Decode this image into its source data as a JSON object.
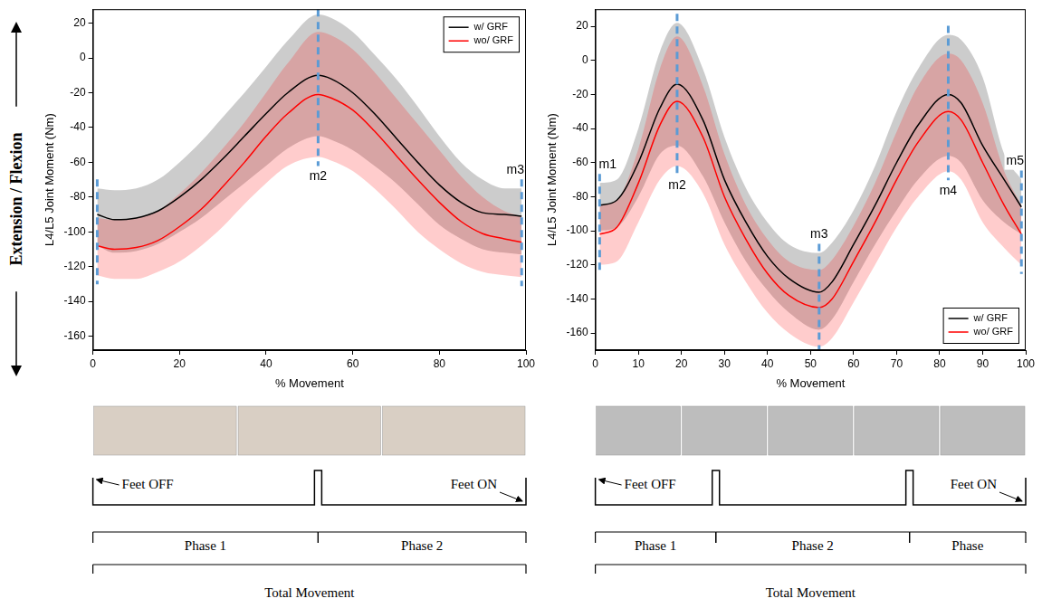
{
  "side_label": "Extension / Flexion",
  "chart_data": [
    {
      "type": "line",
      "x_label": "% Movement",
      "y_label": "L4/L5 Joint Moment (Nm)",
      "x": [
        1,
        5,
        10,
        15,
        20,
        25,
        30,
        35,
        40,
        45,
        52,
        55,
        60,
        65,
        70,
        75,
        80,
        85,
        90,
        95,
        99
      ],
      "series": [
        {
          "name": "w/ GRF",
          "color": "#000000",
          "values": [
            -90,
            -93,
            -92,
            -88,
            -80,
            -70,
            -58,
            -45,
            -32,
            -20,
            -10,
            -12,
            -20,
            -32,
            -46,
            -60,
            -73,
            -83,
            -89,
            -90,
            -91
          ],
          "upper": [
            -75,
            -76,
            -75,
            -70,
            -60,
            -48,
            -34,
            -20,
            -5,
            10,
            25,
            23,
            15,
            2,
            -12,
            -28,
            -45,
            -60,
            -70,
            -75,
            -75
          ],
          "lower": [
            -108,
            -112,
            -111,
            -107,
            -100,
            -92,
            -82,
            -72,
            -62,
            -52,
            -45,
            -47,
            -53,
            -62,
            -72,
            -84,
            -96,
            -104,
            -110,
            -112,
            -113
          ]
        },
        {
          "name": "wo/ GRF",
          "color": "#ff0000",
          "values": [
            -108,
            -110,
            -109,
            -105,
            -97,
            -87,
            -74,
            -60,
            -45,
            -32,
            -21,
            -23,
            -30,
            -42,
            -56,
            -70,
            -83,
            -94,
            -101,
            -104,
            -106
          ],
          "upper": [
            -92,
            -93,
            -92,
            -88,
            -78,
            -66,
            -52,
            -37,
            -20,
            -3,
            15,
            13,
            5,
            -8,
            -23,
            -38,
            -53,
            -68,
            -80,
            -88,
            -91
          ],
          "lower": [
            -125,
            -127,
            -127,
            -123,
            -117,
            -108,
            -97,
            -84,
            -72,
            -62,
            -57,
            -59,
            -65,
            -75,
            -87,
            -100,
            -110,
            -118,
            -123,
            -125,
            -126
          ]
        }
      ],
      "xlim": [
        0,
        100
      ],
      "xticks": [
        0,
        20,
        40,
        60,
        80,
        100
      ],
      "ylim": [
        -168,
        28
      ],
      "yticks": [
        -160,
        -140,
        -120,
        -100,
        -80,
        -60,
        -40,
        -20,
        0,
        20
      ],
      "grid": false,
      "legend": "upper right",
      "markers": [
        {
          "x": 1
        },
        {
          "x": 52,
          "label": "m2"
        },
        {
          "x": 99,
          "label": "m3"
        }
      ],
      "timeline": {
        "events": [
          {
            "label": "Feet OFF",
            "x": 0
          },
          {
            "label": "Feet ON",
            "x": 100
          }
        ],
        "pulses": [
          52
        ],
        "phases": [
          {
            "label": "Phase 1",
            "start": 0,
            "end": 52
          },
          {
            "label": "Phase 2",
            "start": 52,
            "end": 100
          }
        ],
        "total": {
          "label": "Total Movement",
          "start": 0,
          "end": 100
        }
      }
    },
    {
      "type": "line",
      "x_label": "% Movement",
      "y_label": "L4/L5 Joint Moment (Nm)",
      "x": [
        1,
        5,
        10,
        15,
        19,
        25,
        30,
        35,
        40,
        45,
        52,
        55,
        60,
        65,
        70,
        75,
        82,
        85,
        90,
        95,
        99
      ],
      "series": [
        {
          "name": "w/ GRF",
          "color": "#000000",
          "values": [
            -85,
            -82,
            -60,
            -28,
            -14,
            -35,
            -70,
            -95,
            -115,
            -128,
            -136,
            -130,
            -108,
            -85,
            -60,
            -38,
            -20,
            -25,
            -50,
            -70,
            -86
          ],
          "upper": [
            -72,
            -70,
            -40,
            5,
            22,
            -5,
            -45,
            -75,
            -95,
            -108,
            -113,
            -107,
            -88,
            -62,
            -30,
            -5,
            15,
            12,
            -10,
            -55,
            -70
          ],
          "lower": [
            -100,
            -98,
            -80,
            -55,
            -50,
            -68,
            -95,
            -118,
            -135,
            -148,
            -158,
            -152,
            -130,
            -108,
            -88,
            -70,
            -56,
            -60,
            -82,
            -95,
            -102
          ]
        },
        {
          "name": "wo/ GRF",
          "color": "#ff0000",
          "values": [
            -102,
            -98,
            -72,
            -38,
            -24,
            -45,
            -80,
            -105,
            -125,
            -138,
            -145,
            -140,
            -118,
            -95,
            -70,
            -48,
            -30,
            -35,
            -60,
            -85,
            -102
          ],
          "upper": [
            -85,
            -82,
            -52,
            -5,
            14,
            -15,
            -55,
            -85,
            -105,
            -118,
            -123,
            -117,
            -97,
            -72,
            -42,
            -15,
            4,
            0,
            -25,
            -65,
            -85
          ],
          "lower": [
            -120,
            -118,
            -95,
            -70,
            -62,
            -78,
            -108,
            -130,
            -148,
            -160,
            -168,
            -163,
            -142,
            -120,
            -98,
            -80,
            -65,
            -70,
            -95,
            -110,
            -120
          ]
        }
      ],
      "xlim": [
        0,
        100
      ],
      "xticks": [
        0,
        10,
        20,
        30,
        40,
        50,
        60,
        70,
        80,
        90,
        100
      ],
      "ylim": [
        -170,
        30
      ],
      "yticks": [
        -160,
        -140,
        -120,
        -100,
        -80,
        -60,
        -40,
        -20,
        0,
        20
      ],
      "grid": false,
      "legend": "lower right",
      "markers": [
        {
          "x": 1,
          "label": "m1"
        },
        {
          "x": 19,
          "label": "m2"
        },
        {
          "x": 52,
          "label": "m3"
        },
        {
          "x": 82,
          "label": "m4"
        },
        {
          "x": 99,
          "label": "m5"
        }
      ],
      "timeline": {
        "events": [
          {
            "label": "Feet OFF",
            "x": 0
          },
          {
            "label": "Feet ON",
            "x": 100
          }
        ],
        "pulses": [
          28,
          73
        ],
        "phases": [
          {
            "label": "Phase 1",
            "start": 0,
            "end": 28
          },
          {
            "label": "Phase 2",
            "start": 28,
            "end": 73
          },
          {
            "label": "Phase",
            "start": 73,
            "end": 100
          }
        ],
        "total": {
          "label": "Total Movement",
          "start": 0,
          "end": 100
        }
      }
    }
  ]
}
